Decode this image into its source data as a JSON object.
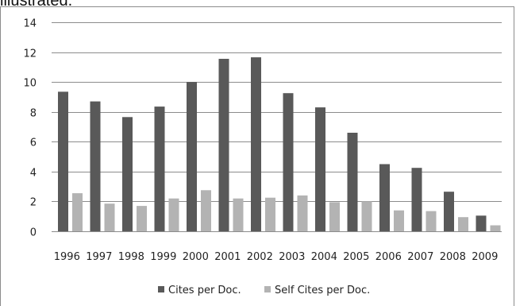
{
  "caption_fragment": "illustrated.",
  "chart_data": {
    "type": "bar",
    "title": "",
    "xlabel": "",
    "ylabel": "",
    "categories": [
      "1996",
      "1997",
      "1998",
      "1999",
      "2000",
      "2001",
      "2002",
      "2003",
      "2004",
      "2005",
      "2006",
      "2007",
      "2008",
      "2009"
    ],
    "series": [
      {
        "name": "Cites per Doc.",
        "color": "#595959",
        "values": [
          9.35,
          8.7,
          7.65,
          8.35,
          10.0,
          11.55,
          11.65,
          9.25,
          8.3,
          6.6,
          4.5,
          4.25,
          2.65,
          1.05
        ]
      },
      {
        "name": "Self Cites per Doc.",
        "color": "#b3b3b3",
        "values": [
          2.55,
          1.85,
          1.7,
          2.2,
          2.75,
          2.2,
          2.25,
          2.4,
          1.95,
          2.0,
          1.4,
          1.35,
          0.95,
          0.4
        ]
      }
    ],
    "ylim": [
      0,
      14
    ],
    "yticks": [
      0,
      2,
      4,
      6,
      8,
      10,
      12,
      14
    ],
    "grid": true,
    "legend_position": "bottom-center",
    "gridline_color": "#8c8c8c",
    "axis_color": "#8c8c8c"
  }
}
